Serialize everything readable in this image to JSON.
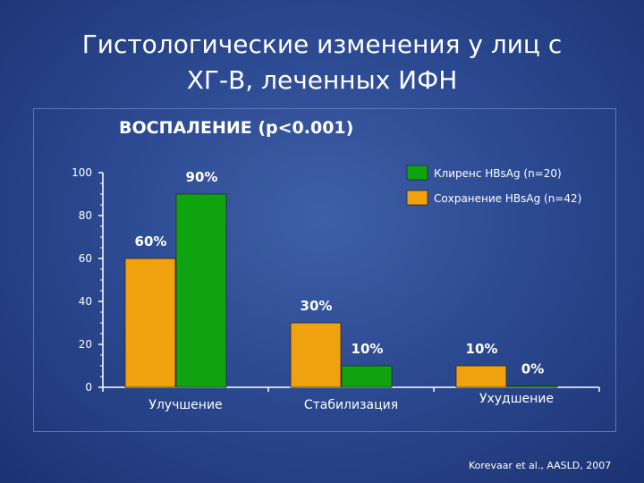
{
  "slide": {
    "title_line1": "Гистологические изменения у лиц с",
    "title_line2": "ХГ-В, леченных ИФН",
    "citation": "Korevaar et al., AASLD, 2007"
  },
  "chart_data": {
    "type": "bar",
    "title": "ВОСПАЛЕНИЕ (p<0.001)",
    "categories": [
      "Улучшение",
      "Стабилизация",
      "Ухудшение"
    ],
    "series": [
      {
        "name": "Сохранение HBsAg (n=42)",
        "color": "#f0a20e",
        "values": [
          60,
          30,
          10
        ],
        "labels": [
          "60%",
          "30%",
          "10%"
        ]
      },
      {
        "name": "Клиренс HBsAg (n=20)",
        "color": "#0fa30f",
        "values": [
          90,
          10,
          0
        ],
        "labels": [
          "90%",
          "10%",
          "0%"
        ]
      }
    ],
    "ylim": [
      0,
      100
    ],
    "yticks": [
      "0",
      "20",
      "40",
      "60",
      "80",
      "100"
    ],
    "xlabel": "",
    "ylabel": "",
    "legend_position": "top-right",
    "grid": false
  }
}
